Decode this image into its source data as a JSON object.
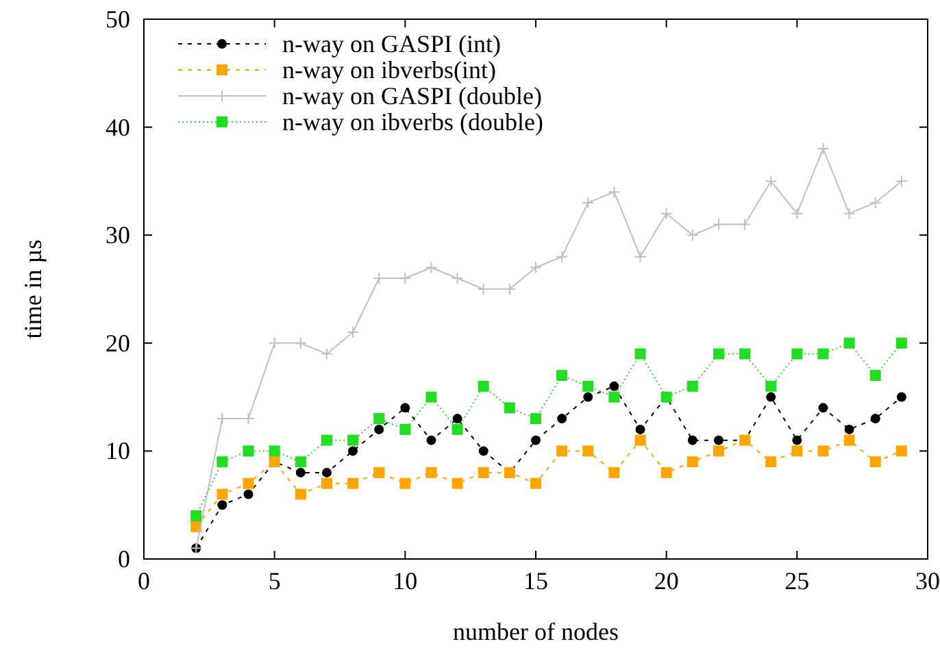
{
  "chart_data": {
    "type": "line",
    "xlabel": "number of nodes",
    "ylabel": "time in µs",
    "x": [
      2,
      3,
      4,
      5,
      6,
      7,
      8,
      9,
      10,
      11,
      12,
      13,
      14,
      15,
      16,
      17,
      18,
      19,
      20,
      21,
      22,
      23,
      24,
      25,
      26,
      27,
      28,
      29
    ],
    "xlim": [
      0,
      30
    ],
    "xticks": [
      0,
      5,
      10,
      15,
      20,
      25,
      30
    ],
    "ylim": [
      0,
      50
    ],
    "yticks": [
      0,
      10,
      20,
      30,
      40,
      50
    ],
    "legend": "top left",
    "series": [
      {
        "name": "n-way on GASPI (int)",
        "color": "#000000",
        "marker": "circle",
        "line_style": "dashed",
        "values": [
          1,
          5,
          6,
          9,
          8,
          8,
          10,
          12,
          14,
          11,
          13,
          10,
          8,
          11,
          13,
          15,
          16,
          12,
          15,
          11,
          11,
          11,
          15,
          11,
          14,
          12,
          13,
          15
        ]
      },
      {
        "name": "n-way on ibverbs(int)",
        "color": "#ffa500",
        "marker": "square",
        "line_style": "dashed",
        "values": [
          3,
          6,
          7,
          9,
          6,
          7,
          7,
          8,
          7,
          8,
          7,
          8,
          8,
          7,
          10,
          10,
          8,
          11,
          8,
          9,
          10,
          11,
          9,
          10,
          10,
          11,
          9,
          10
        ]
      },
      {
        "name": "n-way on GASPI (double)",
        "color": "#c0c0c0",
        "marker": "cross",
        "line_style": "solid",
        "values": [
          1,
          13,
          13,
          20,
          20,
          19,
          21,
          26,
          26,
          27,
          26,
          25,
          25,
          27,
          28,
          33,
          34,
          28,
          32,
          30,
          31,
          31,
          35,
          32,
          38,
          32,
          33,
          35
        ]
      },
      {
        "name": "n-way on ibverbs (double)",
        "color": "#22dd22",
        "marker": "square",
        "line_style": "dotted",
        "values": [
          4,
          9,
          10,
          10,
          9,
          11,
          11,
          13,
          12,
          15,
          12,
          16,
          14,
          13,
          17,
          16,
          15,
          19,
          15,
          16,
          19,
          19,
          16,
          19,
          19,
          20,
          17,
          20
        ]
      }
    ]
  }
}
